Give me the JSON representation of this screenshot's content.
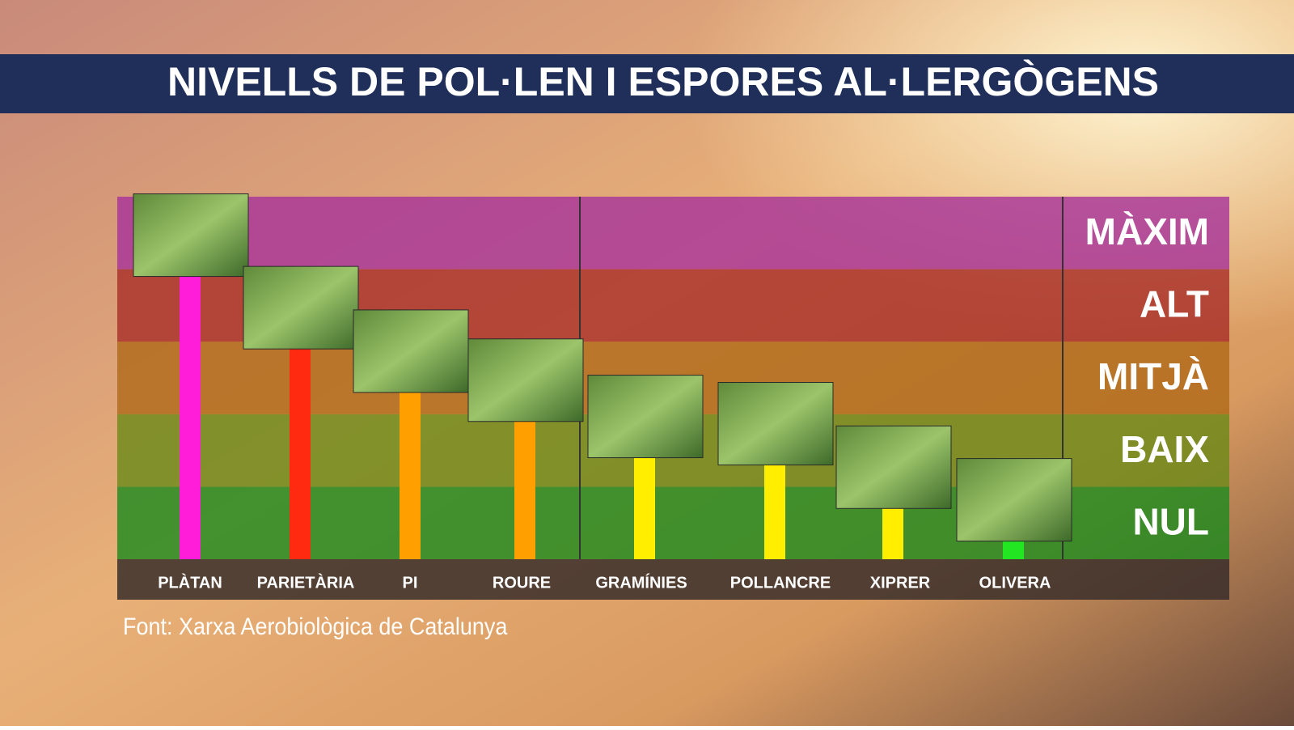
{
  "chart_data": {
    "type": "bar",
    "title": "NIVELLS DE POL·LEN I ESPORES AL·LERGÒGENS",
    "source": "Font: Xarxa Aerobiològica de Catalunya",
    "categories": [
      "PLÀTAN",
      "PARIETÀRIA",
      "PI",
      "ROURE",
      "GRAMÍNIES",
      "POLLANCRE",
      "XIPRER",
      "OLIVERA"
    ],
    "values": [
      3.9,
      2.9,
      2.3,
      1.9,
      1.4,
      1.3,
      0.7,
      0.25
    ],
    "colors": [
      "#ff1dd9",
      "#ff2a10",
      "#ffa000",
      "#ffa000",
      "#ffee00",
      "#ffee00",
      "#ffee00",
      "#22e622"
    ],
    "ylim": [
      0,
      5
    ],
    "yticks": [
      {
        "value": 0.5,
        "label": "NUL"
      },
      {
        "value": 1.5,
        "label": "BAIX"
      },
      {
        "value": 2.5,
        "label": "MITJÀ"
      },
      {
        "value": 3.5,
        "label": "ALT"
      },
      {
        "value": 4.5,
        "label": "MÀXIM"
      }
    ],
    "band_colors": [
      "#1f8a1f",
      "#6d8a1a",
      "#b06a1a",
      "#a8302a",
      "#a8359a"
    ]
  }
}
